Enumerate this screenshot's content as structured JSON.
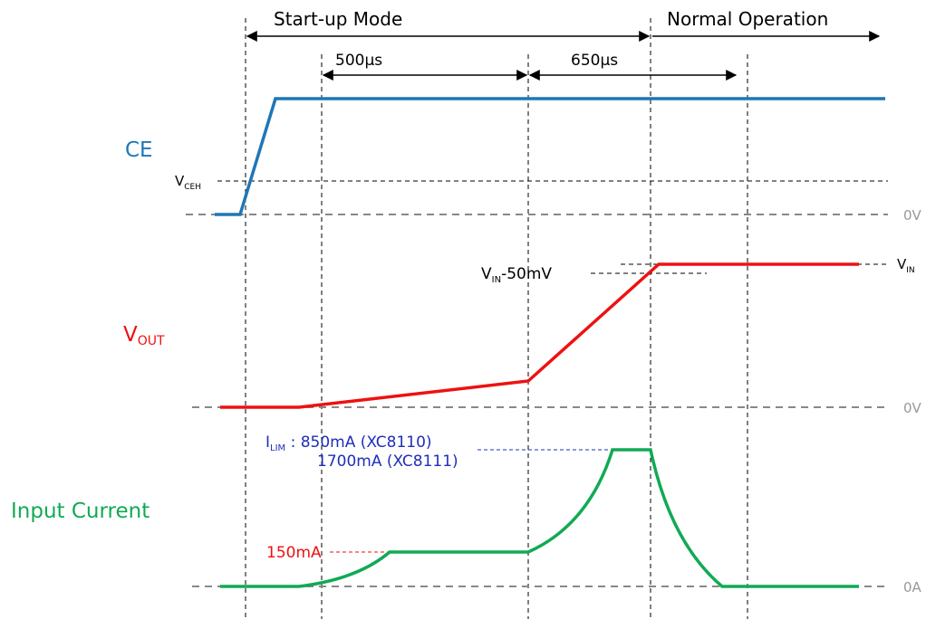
{
  "phases": {
    "startup": "Start-up Mode",
    "normal": "Normal Operation"
  },
  "durations": {
    "first": "500µs",
    "second": "650µs"
  },
  "signals": {
    "ce": {
      "label": "CE",
      "color": "#1f77b4"
    },
    "vout": {
      "label_main": "V",
      "label_sub": "OUT",
      "color": "#ee1111"
    },
    "input_current": {
      "label": "Input Current",
      "color": "#11aa55"
    }
  },
  "levels": {
    "vceh": {
      "main": "V",
      "sub": "CEH"
    },
    "zero_v_1": "0V",
    "zero_v_2": "0V",
    "zero_a": "0A",
    "vin": {
      "main": "V",
      "sub": "IN"
    },
    "vin_minus": {
      "main": "V",
      "sub": "IN",
      "suffix": "-50mV"
    }
  },
  "annotations": {
    "ilim": {
      "main": "I",
      "sub": "LIM",
      "line1_suffix": " : 850mA (XC8110)",
      "line2": "1700mA (XC8111)",
      "color": "#1f2fb8"
    },
    "i150": {
      "text": "150mA",
      "color": "#ee1111"
    }
  },
  "colors": {
    "baseline": "#888888",
    "guide": "#000000"
  }
}
